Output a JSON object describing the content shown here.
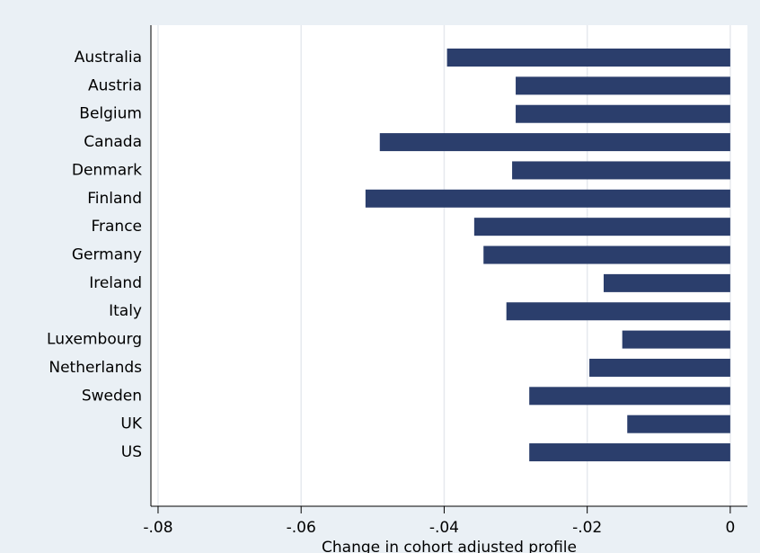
{
  "chart_data": {
    "type": "barh",
    "categories": [
      "Australia",
      "Austria",
      "Belgium",
      "Canada",
      "Denmark",
      "Finland",
      "France",
      "Germany",
      "Ireland",
      "Italy",
      "Luxembourg",
      "Netherlands",
      "Sweden",
      "UK",
      "US"
    ],
    "values": [
      -0.0396,
      -0.03,
      -0.03,
      -0.049,
      -0.0305,
      -0.051,
      -0.0358,
      -0.0345,
      -0.0177,
      -0.0313,
      -0.0151,
      -0.0197,
      -0.0281,
      -0.0144,
      -0.0281
    ],
    "color": "#2b3e6c",
    "x_label": "Change in cohort adjusted profile",
    "xlim": [
      -0.081,
      0.0024
    ],
    "xticks": [
      {
        "value": -0.08,
        "label": "-.08"
      },
      {
        "value": -0.06,
        "label": "-.06"
      },
      {
        "value": -0.04,
        "label": "-.04"
      },
      {
        "value": -0.02,
        "label": "-.02"
      },
      0
    ],
    "grid": true
  }
}
